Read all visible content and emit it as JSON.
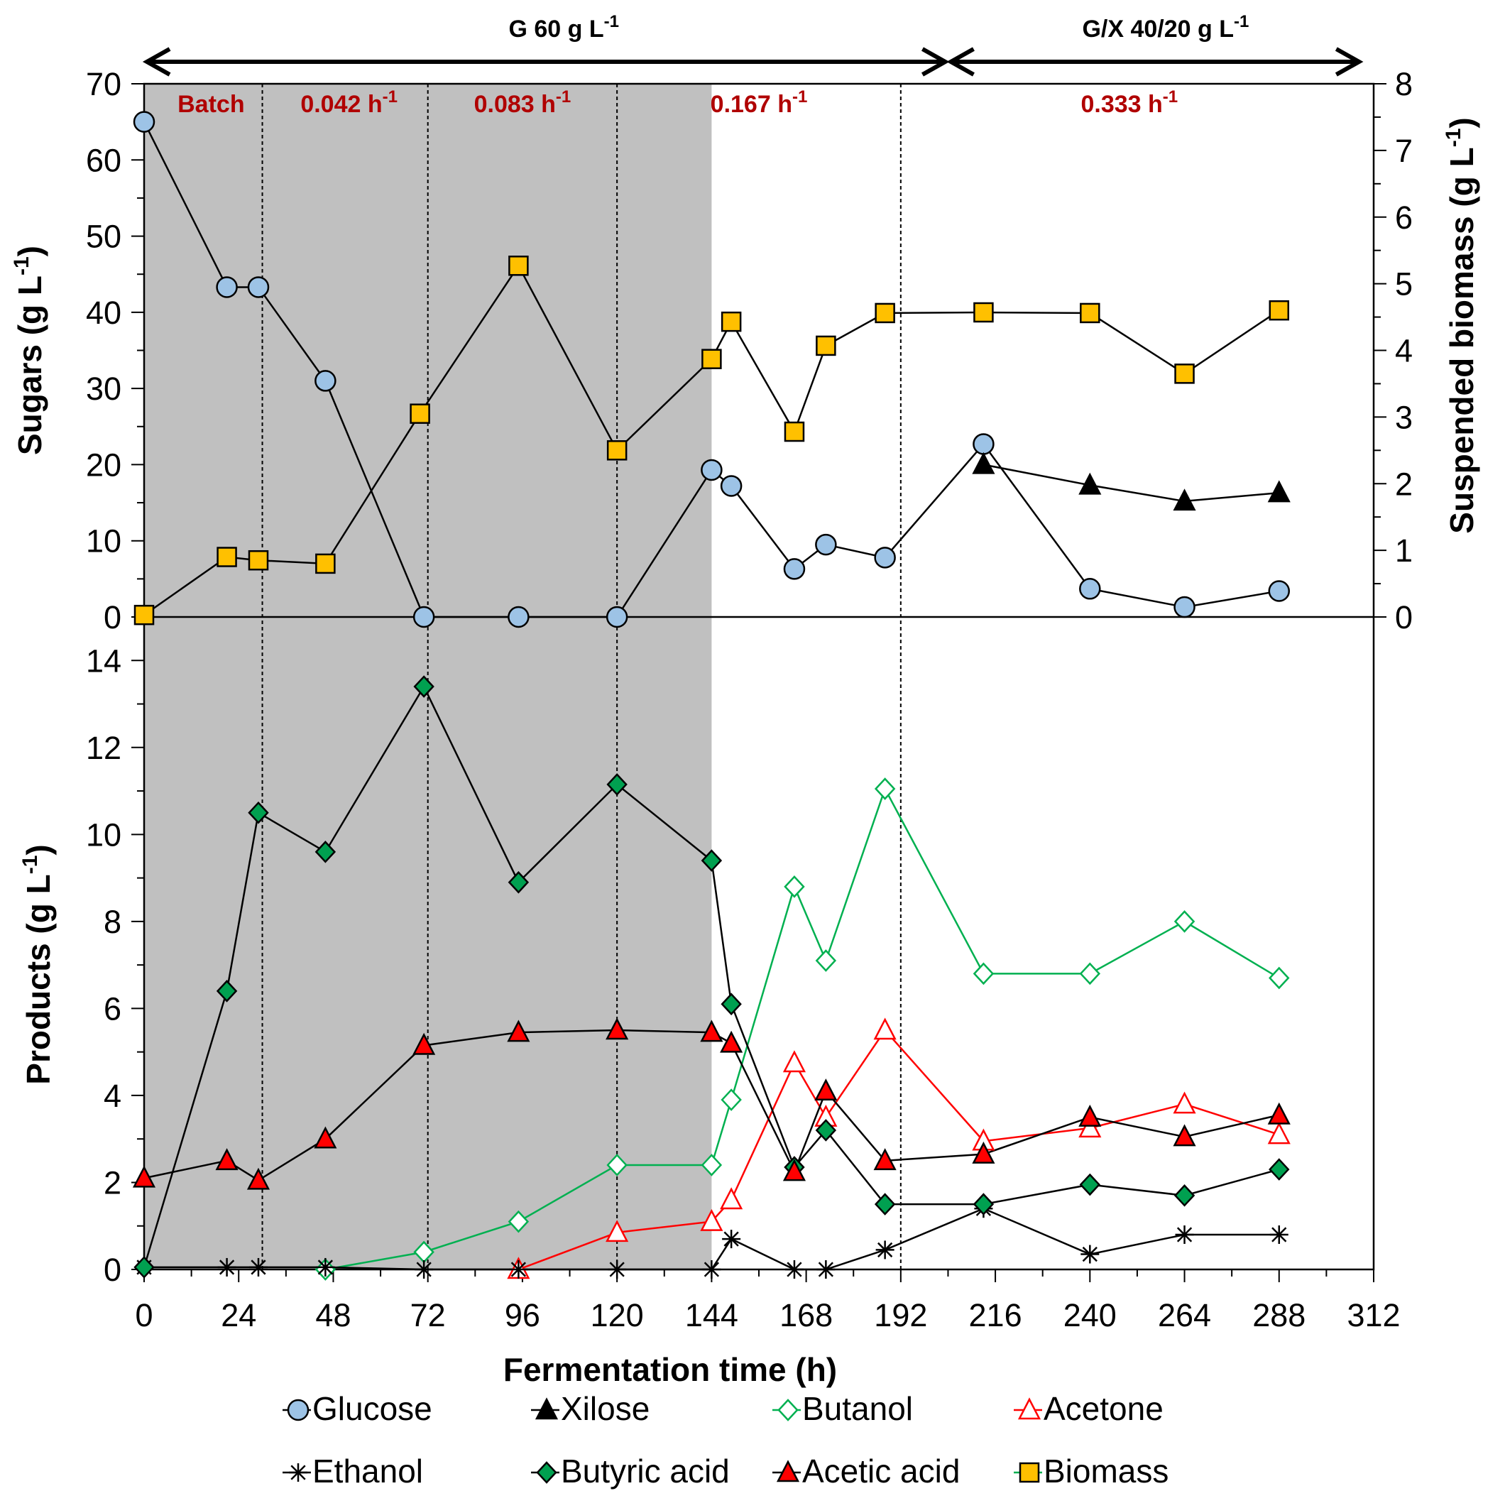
{
  "chart_data": {
    "type": "line",
    "xlabel": "Fermentation time (h)",
    "xlim": [
      0,
      312
    ],
    "xticks": [
      0,
      24,
      48,
      72,
      96,
      120,
      144,
      168,
      192,
      216,
      240,
      264,
      288,
      312
    ],
    "shaded_region": [
      0,
      144
    ],
    "period_dividers": [
      30,
      72,
      120,
      192
    ],
    "phase_labels": [
      {
        "text": "G 60 g L",
        "sup": "-1",
        "from": 0,
        "to": 204
      },
      {
        "text": "G/X 40/20 g L",
        "sup": "-1",
        "from": 204,
        "to": 309
      }
    ],
    "rate_labels": [
      {
        "text": "Batch",
        "sup": "",
        "x": 17
      },
      {
        "text": "0.042 h",
        "sup": "-1",
        "x": 52
      },
      {
        "text": "0.083 h",
        "sup": "-1",
        "x": 96
      },
      {
        "text": "0.167 h",
        "sup": "-1",
        "x": 156
      },
      {
        "text": "0.333 h",
        "sup": "-1",
        "x": 250
      }
    ],
    "label_color": "#b00000",
    "shade_color": "#c0c0c0",
    "top_panel": {
      "ylabel": "Sugars (g L",
      "ylabel_sup": "-1",
      "ylabel_end": ")",
      "ylim": [
        0,
        70
      ],
      "yticks": [
        0,
        10,
        20,
        30,
        40,
        50,
        60,
        70
      ],
      "y2label": "Suspended biomass (g L",
      "y2label_sup": "-1",
      "y2label_end": ")",
      "y2lim": [
        0,
        8
      ],
      "y2ticks": [
        0,
        1,
        2,
        3,
        4,
        5,
        6,
        7,
        8
      ],
      "series": [
        {
          "name": "Glucose",
          "axis": "left",
          "marker": "circle",
          "fill": "#9dc3e6",
          "line": "#000000",
          "x": [
            0,
            21,
            29,
            46,
            71,
            95,
            120,
            144,
            149,
            165,
            173,
            188,
            213,
            240,
            264,
            288
          ],
          "y": [
            65,
            43.3,
            43.3,
            31,
            0,
            0,
            0,
            19.3,
            17.2,
            6.3,
            9.5,
            7.8,
            22.7,
            3.7,
            1.3,
            3.4
          ]
        },
        {
          "name": "Xilose",
          "axis": "left",
          "marker": "triangle",
          "fill": "#000000",
          "line": "#000000",
          "x": [
            213,
            240,
            264,
            288
          ],
          "y": [
            20,
            17.3,
            15.2,
            16.3
          ]
        },
        {
          "name": "Biomass",
          "axis": "right",
          "marker": "square",
          "fill": "#ffc000",
          "line": "#000000",
          "x": [
            0,
            21,
            29,
            46,
            70,
            95,
            120,
            144,
            149,
            165,
            173,
            188,
            213,
            240,
            264,
            288
          ],
          "y": [
            0.03,
            0.9,
            0.85,
            0.8,
            3.05,
            5.27,
            2.5,
            3.87,
            4.43,
            2.78,
            4.07,
            4.56,
            4.57,
            4.56,
            3.65,
            4.6
          ]
        }
      ]
    },
    "bottom_panel": {
      "ylabel": "Products (g L",
      "ylabel_sup": "-1",
      "ylabel_end": ")",
      "ylim": [
        0,
        15
      ],
      "yticks": [
        0,
        2,
        4,
        6,
        8,
        10,
        12,
        14
      ],
      "series": [
        {
          "name": "Butanol",
          "marker": "diamond-open",
          "fill": "#ffffff",
          "stroke": "#00b050",
          "line": "#00b050",
          "x": [
            46,
            71,
            95,
            120,
            144,
            149,
            165,
            173,
            188,
            213,
            240,
            264,
            288
          ],
          "y": [
            0,
            0.4,
            1.1,
            2.4,
            2.4,
            3.9,
            8.8,
            7.1,
            11.05,
            6.8,
            6.8,
            8.0,
            6.7
          ]
        },
        {
          "name": "Acetone",
          "marker": "triangle-open",
          "fill": "#ffffff",
          "stroke": "#ff0000",
          "line": "#ff0000",
          "x": [
            95,
            120,
            144,
            149,
            165,
            173,
            188,
            213,
            240,
            264,
            288
          ],
          "y": [
            0,
            0.85,
            1.1,
            1.6,
            4.75,
            3.5,
            5.5,
            2.95,
            3.25,
            3.8,
            3.1
          ]
        },
        {
          "name": "Ethanol",
          "marker": "star",
          "fill": "#000000",
          "stroke": "#000000",
          "line": "#000000",
          "x": [
            0,
            21,
            29,
            46,
            71,
            95,
            120,
            144,
            149,
            165,
            173,
            188,
            213,
            240,
            264,
            288
          ],
          "y": [
            0.05,
            0.05,
            0.05,
            0.05,
            0,
            0,
            0,
            0,
            0.7,
            0,
            0,
            0.45,
            1.4,
            0.35,
            0.8,
            0.8
          ]
        },
        {
          "name": "Butyric acid",
          "marker": "diamond",
          "fill": "#00a050",
          "stroke": "#000000",
          "line": "#000000",
          "x": [
            0,
            21,
            29,
            46,
            71,
            95,
            120,
            144,
            149,
            165,
            173,
            188,
            213,
            240,
            264,
            288
          ],
          "y": [
            0.05,
            6.4,
            10.5,
            9.6,
            13.4,
            8.9,
            11.15,
            9.4,
            6.1,
            2.35,
            3.2,
            1.5,
            1.5,
            1.95,
            1.7,
            2.3
          ]
        },
        {
          "name": "Acetic acid",
          "marker": "triangle",
          "fill": "#ff0000",
          "stroke": "#000000",
          "line": "#000000",
          "x": [
            0,
            21,
            29,
            46,
            71,
            95,
            120,
            144,
            149,
            165,
            173,
            188,
            213,
            240,
            264,
            288
          ],
          "y": [
            2.1,
            2.5,
            2.05,
            3.0,
            5.15,
            5.45,
            5.5,
            5.45,
            5.2,
            2.25,
            4.1,
            2.5,
            2.65,
            3.5,
            3.05,
            3.55
          ]
        }
      ]
    },
    "legend": {
      "placement": "bottom",
      "rows": [
        [
          {
            "name": "Glucose",
            "marker": "circle",
            "fill": "#9dc3e6",
            "stroke": "#000000",
            "line": "#000000"
          },
          {
            "name": "Xilose",
            "marker": "triangle",
            "fill": "#000000",
            "stroke": "#000000",
            "line": "#000000"
          },
          {
            "name": "Butanol",
            "marker": "diamond-open",
            "fill": "#ffffff",
            "stroke": "#00b050",
            "line": "#00b050"
          },
          {
            "name": "Acetone",
            "marker": "triangle-open",
            "fill": "#ffffff",
            "stroke": "#ff0000",
            "line": "#ff0000"
          }
        ],
        [
          {
            "name": "Ethanol",
            "marker": "star",
            "fill": "#000000",
            "stroke": "#000000",
            "line": "#000000"
          },
          {
            "name": "Butyric acid",
            "marker": "diamond",
            "fill": "#00a050",
            "stroke": "#000000",
            "line": "#000000"
          },
          {
            "name": "Acetic acid",
            "marker": "triangle",
            "fill": "#ff0000",
            "stroke": "#000000",
            "line": "#000000"
          },
          {
            "name": "Biomass",
            "marker": "square",
            "fill": "#ffc000",
            "stroke": "#000000",
            "line": "#00b050"
          }
        ]
      ]
    }
  }
}
